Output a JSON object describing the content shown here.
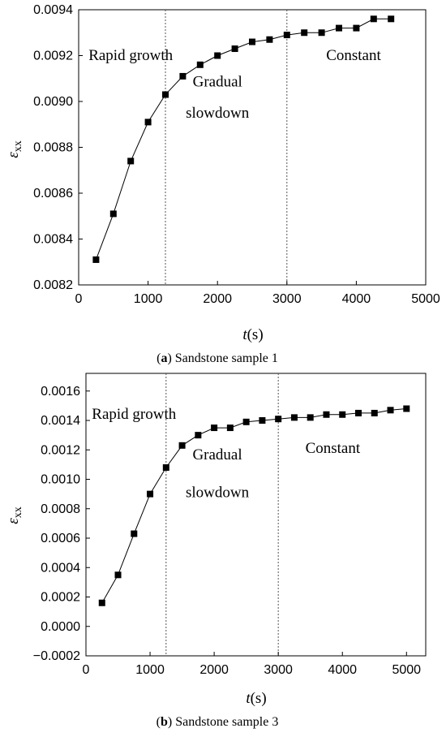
{
  "chart_data": [
    {
      "type": "line",
      "caption_letter": "a",
      "caption_text": " Sandstone sample 1",
      "xlabel_italic": "t",
      "xlabel_unit": "(s)",
      "ylabel_symbol": "ε",
      "ylabel_sub": "xx",
      "xlim": [
        0,
        5000
      ],
      "ylim": [
        0.0082,
        0.0094
      ],
      "xticks": [
        "0",
        "1000",
        "2000",
        "3000",
        "4000",
        "5000"
      ],
      "xtick_values": [
        0,
        1000,
        2000,
        3000,
        4000,
        5000
      ],
      "yticks": [
        "0.0082",
        "0.0084",
        "0.0086",
        "0.0088",
        "0.0090",
        "0.0092",
        "0.0094"
      ],
      "ytick_values": [
        0.0082,
        0.0084,
        0.0086,
        0.0088,
        0.009,
        0.0092,
        0.0094
      ],
      "vlines": [
        1250,
        3000
      ],
      "annotations": [
        {
          "text": "Rapid growth",
          "x": 750,
          "y": 0.00918
        },
        {
          "text": "Gradual",
          "x": 2000,
          "y": 0.009065
        },
        {
          "text": "slowdown",
          "x": 2000,
          "y": 0.00893
        },
        {
          "text": "Constant",
          "x": 3960,
          "y": 0.00918
        }
      ],
      "grid": false,
      "series": [
        {
          "marker": "square",
          "x": [
            250,
            500,
            750,
            1000,
            1250,
            1500,
            1750,
            2000,
            2250,
            2500,
            2750,
            3000,
            3250,
            3500,
            3750,
            4000,
            4250,
            4500
          ],
          "y": [
            0.00831,
            0.00851,
            0.00874,
            0.00891,
            0.00903,
            0.00911,
            0.00916,
            0.0092,
            0.00923,
            0.00926,
            0.00927,
            0.00929,
            0.0093,
            0.0093,
            0.00932,
            0.00932,
            0.00936,
            0.00936
          ]
        }
      ]
    },
    {
      "type": "line",
      "caption_letter": "b",
      "caption_text": " Sandstone sample 3",
      "xlabel_italic": "t",
      "xlabel_unit": "(s)",
      "ylabel_symbol": "ε",
      "ylabel_sub": "xx",
      "xlim": [
        0,
        5300
      ],
      "ylim": [
        -0.0002,
        0.00172
      ],
      "xticks": [
        "0",
        "1000",
        "2000",
        "3000",
        "4000",
        "5000"
      ],
      "xtick_values": [
        0,
        1000,
        2000,
        3000,
        4000,
        5000
      ],
      "yticks": [
        "−0.0002",
        "0.0000",
        "0.0002",
        "0.0004",
        "0.0006",
        "0.0008",
        "0.0010",
        "0.0012",
        "0.0014",
        "0.0016"
      ],
      "ytick_values": [
        -0.0002,
        0.0,
        0.0002,
        0.0004,
        0.0006,
        0.0008,
        0.001,
        0.0012,
        0.0014,
        0.0016
      ],
      "vlines": [
        1250,
        3000
      ],
      "annotations": [
        {
          "text": "Rapid growth",
          "x": 750,
          "y": 0.00141
        },
        {
          "text": "Gradual",
          "x": 2050,
          "y": 0.001135
        },
        {
          "text": "slowdown",
          "x": 2050,
          "y": 0.00088
        },
        {
          "text": "Constant",
          "x": 3850,
          "y": 0.00118
        }
      ],
      "grid": false,
      "series": [
        {
          "marker": "square",
          "x": [
            250,
            500,
            750,
            1000,
            1250,
            1500,
            1750,
            2000,
            2250,
            2500,
            2750,
            3000,
            3250,
            3500,
            3750,
            4000,
            4250,
            4500,
            4750,
            5000
          ],
          "y": [
            0.00016,
            0.00035,
            0.00063,
            0.0009,
            0.00108,
            0.00123,
            0.0013,
            0.00135,
            0.00135,
            0.00139,
            0.0014,
            0.00141,
            0.00142,
            0.00142,
            0.00144,
            0.00144,
            0.00145,
            0.00145,
            0.00147,
            0.00148
          ]
        }
      ]
    }
  ]
}
